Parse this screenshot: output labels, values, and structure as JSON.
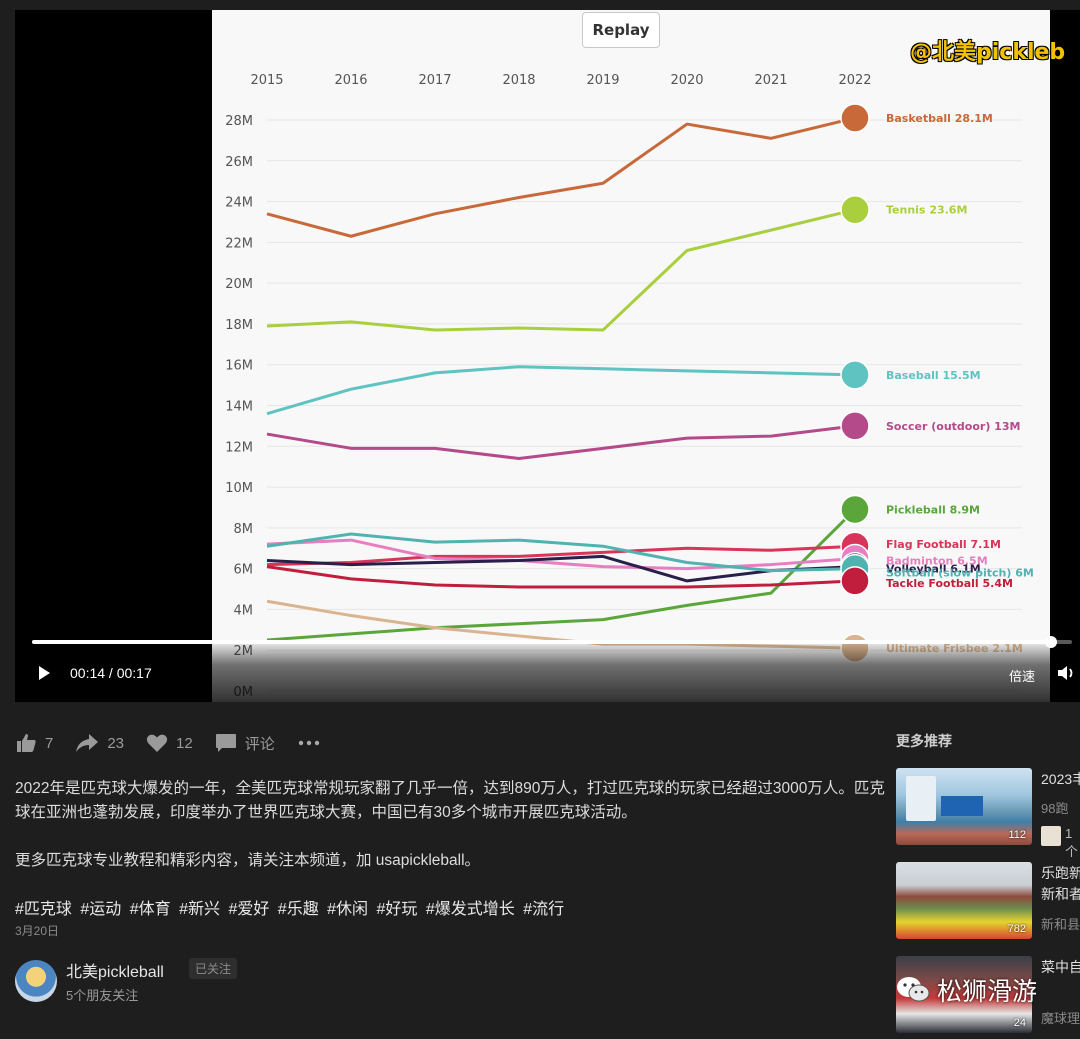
{
  "video": {
    "replay_label": "Replay",
    "watermark_handle": "@北美pickleb",
    "time_display": "00:14 / 00:17",
    "progress": 0.98,
    "speed_label": "倍速"
  },
  "chart_data": {
    "type": "line",
    "x": [
      2015,
      2016,
      2017,
      2018,
      2019,
      2020,
      2021,
      2022
    ],
    "x_tick_labels": [
      "2015",
      "2016",
      "2017",
      "2018",
      "2019",
      "2020",
      "2021",
      "2022"
    ],
    "y_tick_labels": [
      "0M",
      "2M",
      "4M",
      "6M",
      "8M",
      "10M",
      "12M",
      "14M",
      "16M",
      "18M",
      "20M",
      "22M",
      "24M",
      "26M",
      "28M"
    ],
    "ylim": [
      0,
      28
    ],
    "grid": true,
    "series": [
      {
        "name": "Basketball",
        "end_label": "Basketball 28.1M",
        "color": "#c8693a",
        "values": [
          23.4,
          22.3,
          23.4,
          24.2,
          24.9,
          27.8,
          27.1,
          28.1
        ]
      },
      {
        "name": "Tennis",
        "end_label": "Tennis 23.6M",
        "color": "#a9cf3f",
        "values": [
          17.9,
          18.1,
          17.7,
          17.8,
          17.7,
          21.6,
          22.6,
          23.6
        ]
      },
      {
        "name": "Baseball",
        "end_label": "Baseball 15.5M",
        "color": "#5ec3c1",
        "values": [
          13.6,
          14.8,
          15.6,
          15.9,
          15.8,
          15.7,
          15.6,
          15.5
        ]
      },
      {
        "name": "Soccer (outdoor)",
        "end_label": "Soccer (outdoor) 13M",
        "color": "#b44a8a",
        "values": [
          12.6,
          11.9,
          11.9,
          11.4,
          11.9,
          12.4,
          12.5,
          13.0
        ]
      },
      {
        "name": "Pickleball",
        "end_label": "Pickleball 8.9M",
        "color": "#5aa63a",
        "values": [
          2.5,
          2.8,
          3.1,
          3.3,
          3.5,
          4.2,
          4.8,
          8.9
        ]
      },
      {
        "name": "Flag Football",
        "end_label": "Flag Football 7.1M",
        "color": "#d9345a",
        "values": [
          6.2,
          6.3,
          6.6,
          6.6,
          6.8,
          7.0,
          6.9,
          7.1
        ]
      },
      {
        "name": "Badminton",
        "end_label": "Badminton 6.5M",
        "color": "#e67ec1",
        "values": [
          7.2,
          7.4,
          6.5,
          6.4,
          6.1,
          6.0,
          6.2,
          6.5
        ]
      },
      {
        "name": "Volleyball",
        "end_label": "Volleyball 6.1M",
        "color": "#2a1e4a",
        "values": [
          6.4,
          6.2,
          6.3,
          6.4,
          6.6,
          5.4,
          5.9,
          6.1
        ]
      },
      {
        "name": "Softball (slow pitch)",
        "end_label": "Softball (slow pitch) 6M",
        "color": "#4fb3b0",
        "values": [
          7.1,
          7.7,
          7.3,
          7.4,
          7.1,
          6.3,
          5.9,
          6.0
        ]
      },
      {
        "name": "Tackle Football",
        "end_label": "Tackle Football 5.4M",
        "color": "#c01e3c",
        "values": [
          6.1,
          5.5,
          5.2,
          5.1,
          5.1,
          5.1,
          5.2,
          5.4
        ]
      },
      {
        "name": "Ultimate Frisbee",
        "end_label": "Ultimate Frisbee 2.1M",
        "color": "#d9b48e",
        "values": [
          4.4,
          3.7,
          3.1,
          2.7,
          2.3,
          2.3,
          2.2,
          2.1
        ]
      }
    ]
  },
  "actions": {
    "like_count": "7",
    "share_count": "23",
    "heart_count": "12",
    "comment_label": "评论"
  },
  "post": {
    "paragraph1": "2022年是匹克球大爆发的一年，全美匹克球常规玩家翻了几乎一倍，达到890万人，打过匹克球的玩家已经超过3000万人。匹克球在亚洲也蓬勃发展，印度举办了世界匹克球大赛，中国已有30多个城市开展匹克球活动。",
    "paragraph2": "更多匹克球专业教程和精彩内容，请关注本频道，加 usapickleball。",
    "hashtags": [
      "#匹克球",
      "#运动",
      "#体育",
      " #新兴",
      "#爱好",
      "#乐趣",
      "#休闲",
      "#好玩",
      "#爆发式增长",
      "#流行"
    ],
    "date": "3月20日"
  },
  "author": {
    "name": "北美pickleball",
    "follow_status": "已关注",
    "friends_following": "5个朋友关注"
  },
  "recommendations": {
    "heading": "更多推荐",
    "items": [
      {
        "title": "2023丰",
        "subtitle": "98跑",
        "likes": "112",
        "avatar_count": "1个"
      },
      {
        "title": "乐跑新",
        "subtitle_line2": "新和者",
        "subtitle": "新和县",
        "likes": "782"
      },
      {
        "title": "菜中自",
        "subtitle": "魔球理",
        "likes": "24"
      }
    ]
  },
  "bottom_watermark": "松狮滑游"
}
